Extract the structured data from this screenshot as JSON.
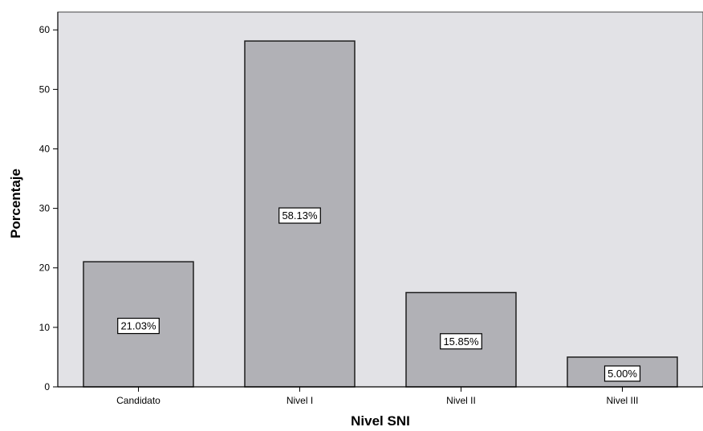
{
  "chart_data": {
    "type": "bar",
    "title": "",
    "xlabel": "Nivel SNI",
    "ylabel": "Porcentaje",
    "categories": [
      "Candidato",
      "Nivel I",
      "Nivel II",
      "Nivel III"
    ],
    "values": [
      21.03,
      58.13,
      15.85,
      5.0
    ],
    "data_labels": [
      "21.03%",
      "58.13%",
      "15.85%",
      "5.00%"
    ],
    "ylim": [
      0,
      63
    ],
    "yticks": [
      0,
      10,
      20,
      30,
      40,
      50,
      60
    ],
    "grid": false,
    "legend": "none",
    "colors": {
      "plot_background": "#e2e2e6",
      "bar_fill": "#b1b1b6",
      "bar_stroke": "#1e1e1e",
      "label_box_fill": "#ffffff"
    }
  }
}
